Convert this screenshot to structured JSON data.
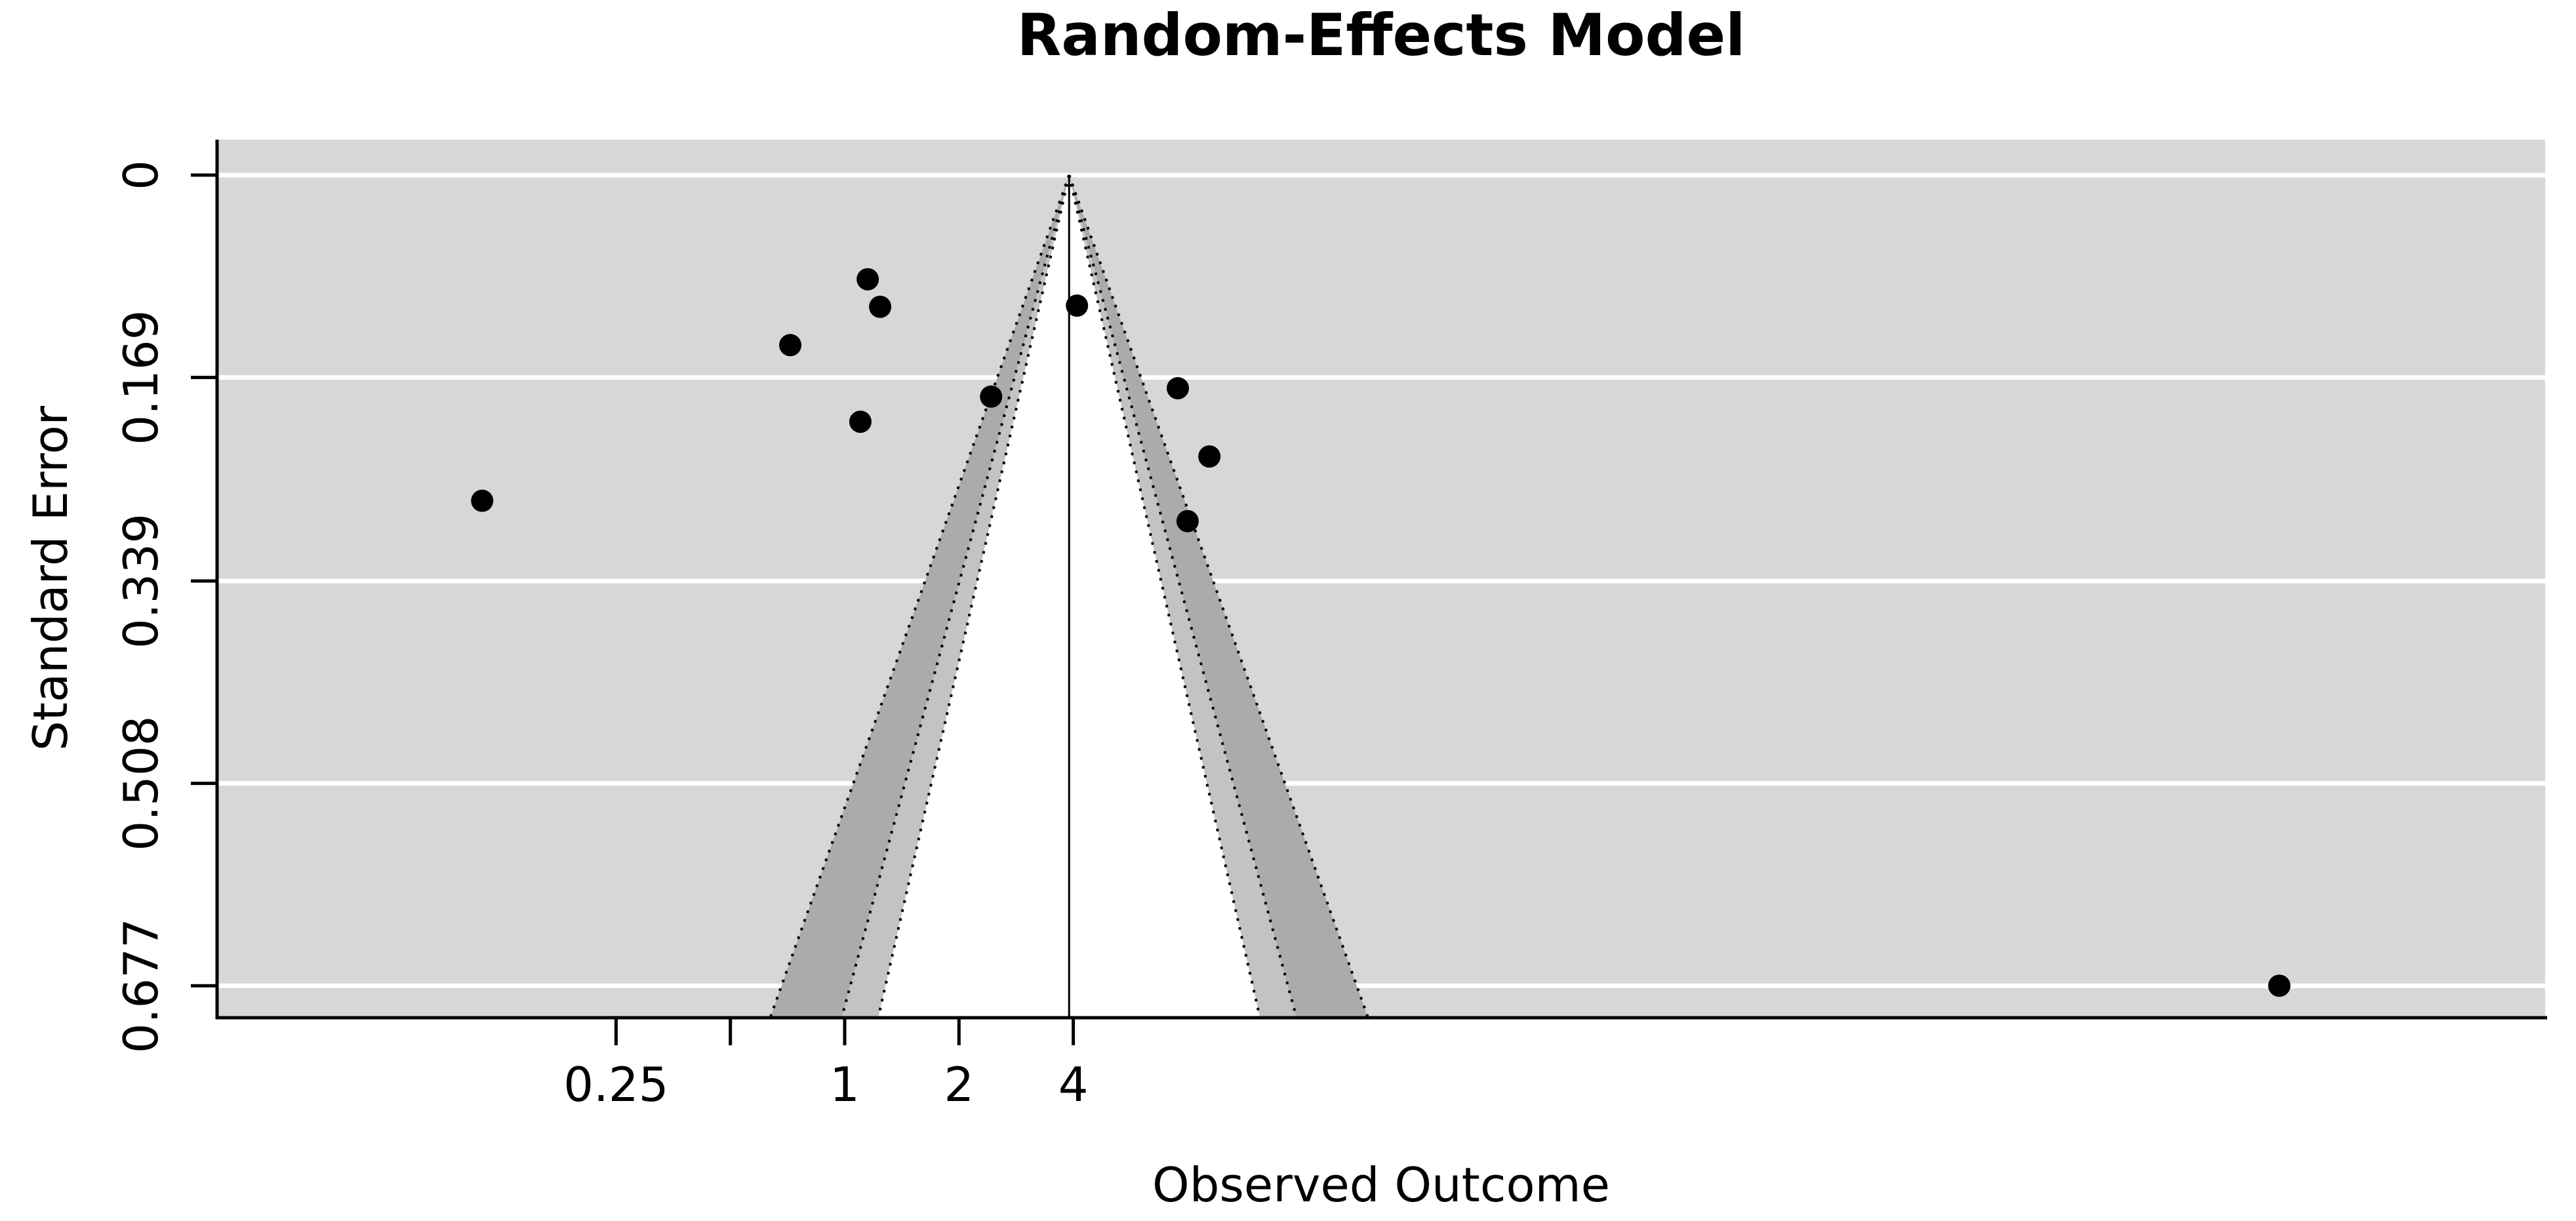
{
  "title": "Random-Effects Model",
  "chart_data": {
    "type": "scatter",
    "subtype": "contour-enhanced-funnel-plot",
    "title": "Random-Effects Model",
    "xlabel": "Observed Outcome",
    "ylabel": "Standard Error",
    "x_scale": "log",
    "x_ticks": [
      {
        "value": 0.25,
        "label": "0.25"
      },
      {
        "value": 0.5,
        "label": ""
      },
      {
        "value": 1,
        "label": "1"
      },
      {
        "value": 2,
        "label": "2"
      },
      {
        "value": 4,
        "label": "4"
      }
    ],
    "y_ticks": [
      {
        "value": 0,
        "label": "0"
      },
      {
        "value": 0.169,
        "label": "0.169"
      },
      {
        "value": 0.339,
        "label": "0.339"
      },
      {
        "value": 0.508,
        "label": "0.508"
      },
      {
        "value": 0.677,
        "label": "0.677"
      }
    ],
    "y_axis_direction": "reversed (0 at top)",
    "center_estimate": 3.9,
    "pseudo_ci_levels": [
      99,
      95,
      90
    ],
    "points": [
      {
        "x": 0.111,
        "se": 0.272
      },
      {
        "x": 0.719,
        "se": 0.142
      },
      {
        "x": 1.15,
        "se": 0.087
      },
      {
        "x": 1.24,
        "se": 0.11
      },
      {
        "x": 1.1,
        "se": 0.206
      },
      {
        "x": 2.43,
        "se": 0.185
      },
      {
        "x": 4.09,
        "se": 0.109
      },
      {
        "x": 7.54,
        "se": 0.178
      },
      {
        "x": 9.13,
        "se": 0.235
      },
      {
        "x": 8.0,
        "se": 0.289
      },
      {
        "x": 6000,
        "se": 0.677
      }
    ],
    "legend": "none",
    "grid": "horizontal white gridlines at each y tick",
    "colors": {
      "plot_bg": "#d7d7d7",
      "band_95_99": "#ababab",
      "band_90_95": "#c3c3c3",
      "band_inner_90": "#ffffff",
      "gridline": "#ffffff",
      "point": "#000000",
      "axis": "#000000",
      "funnel_line": "#000000"
    }
  }
}
